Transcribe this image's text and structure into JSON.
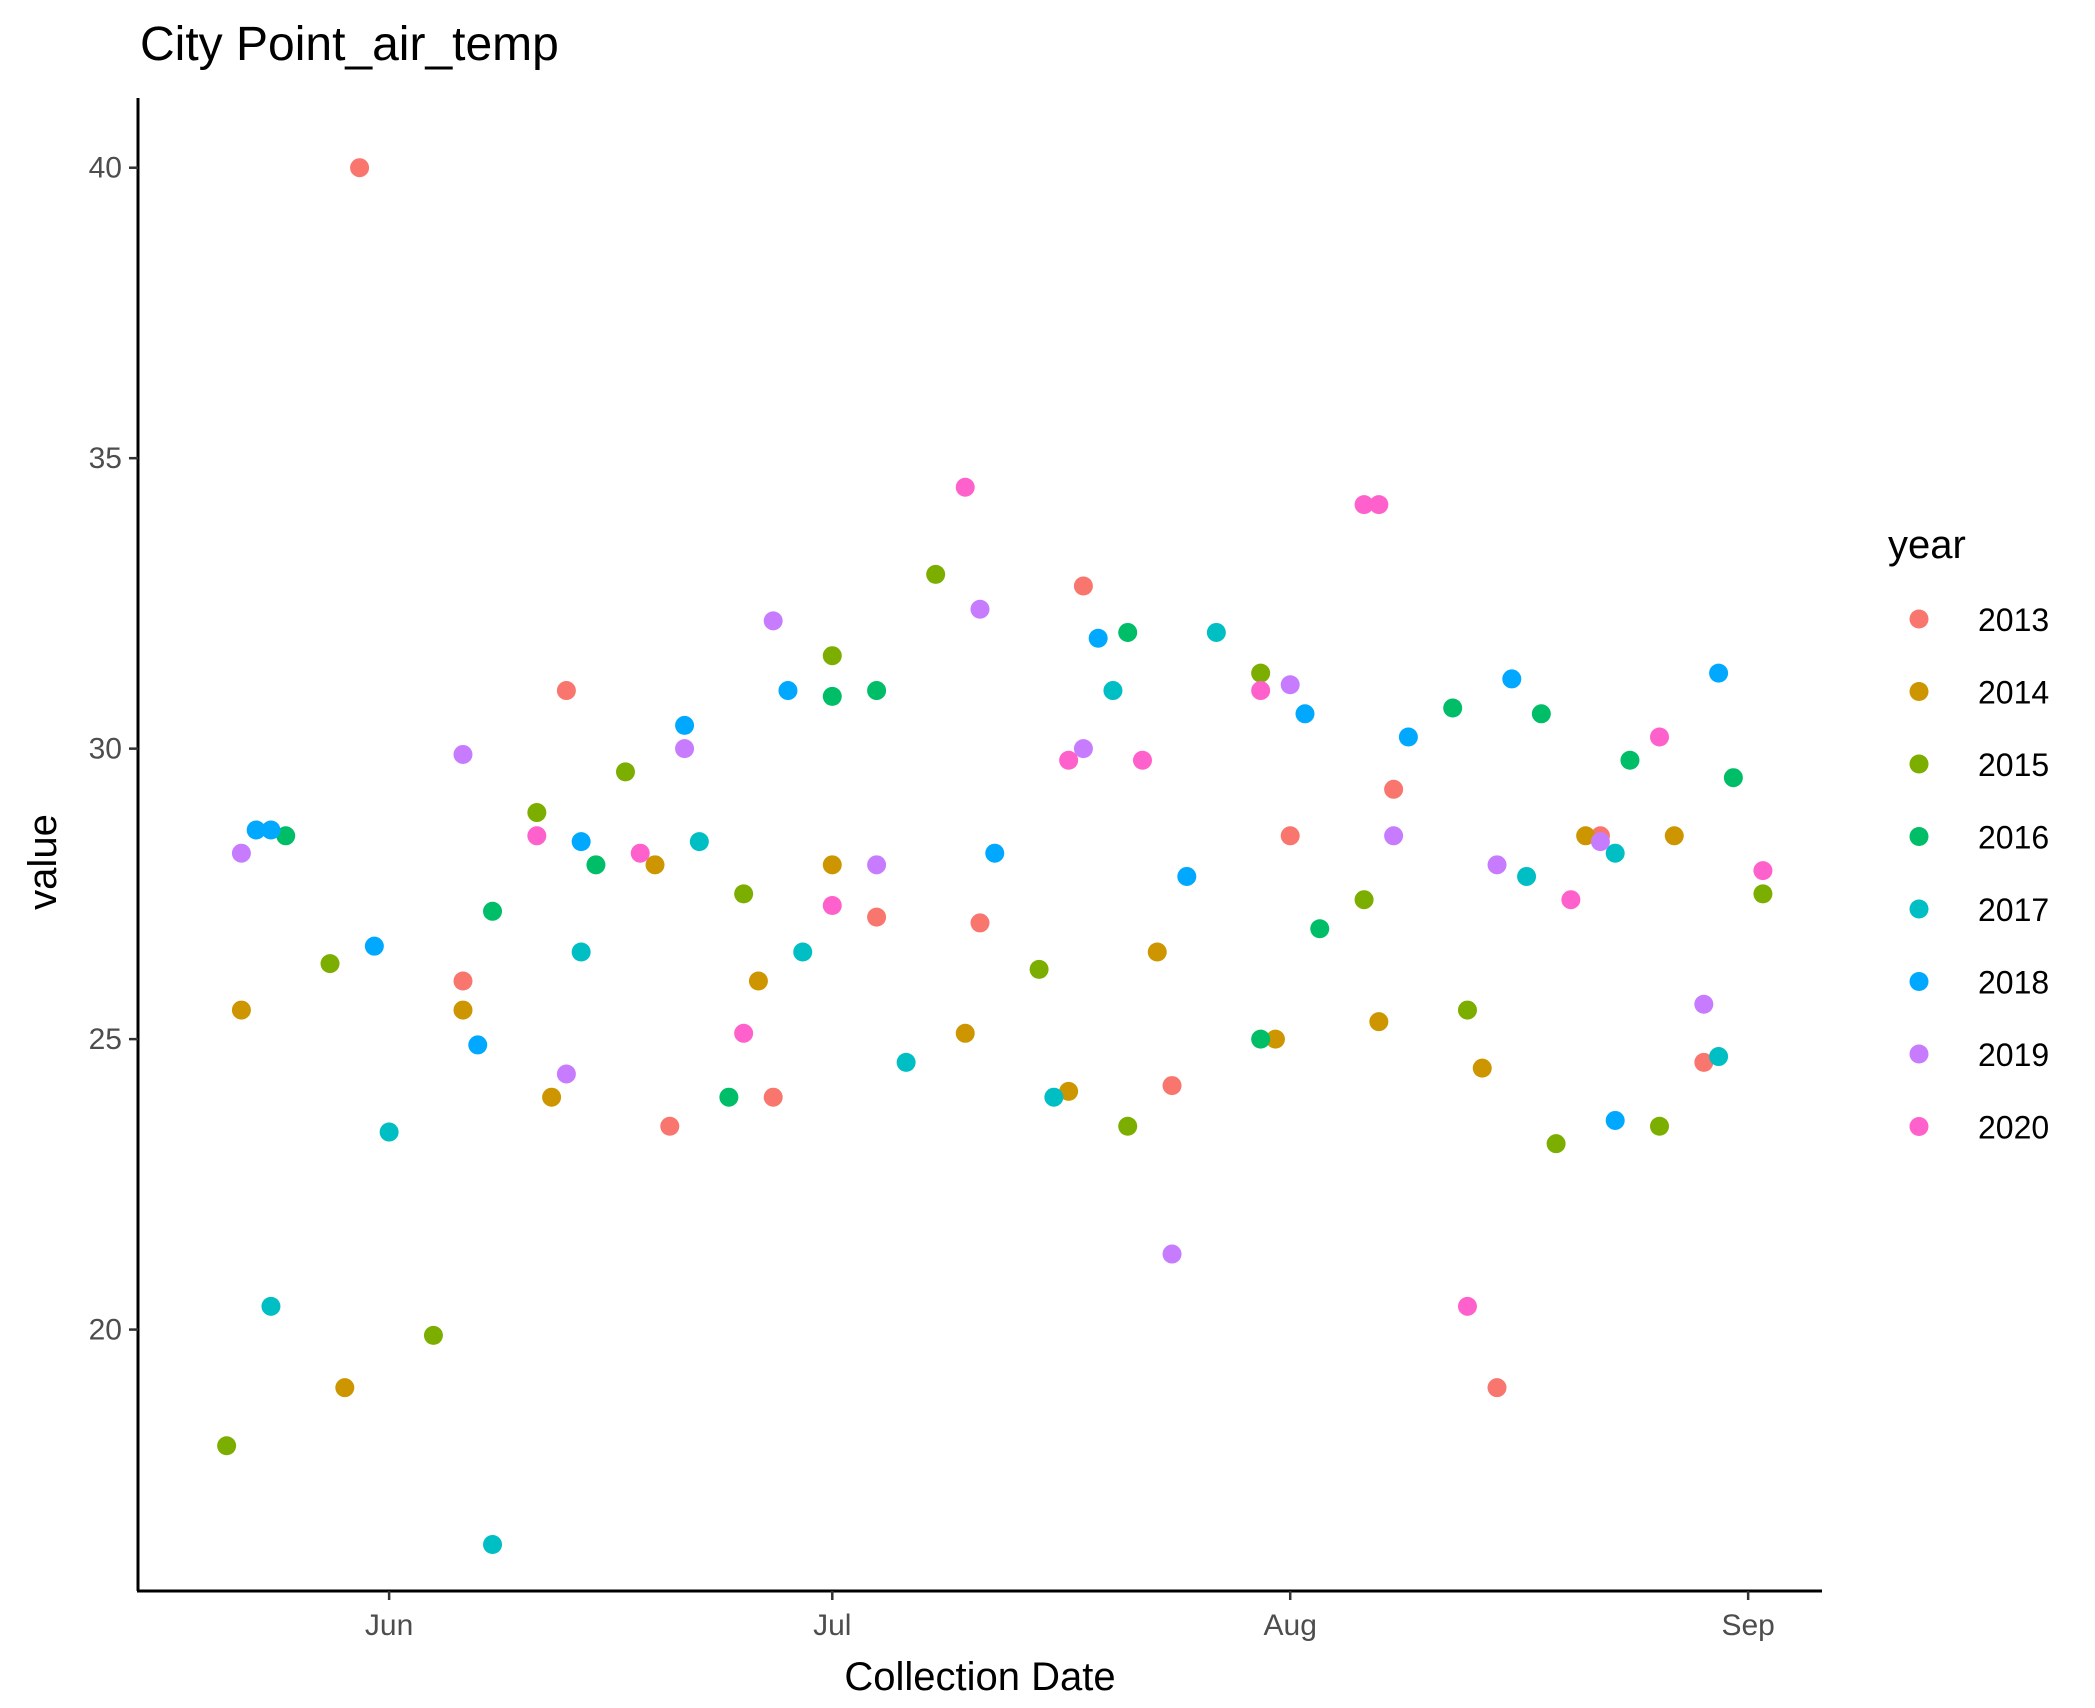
{
  "chart_data": {
    "type": "scatter",
    "title": "City Point_air_temp",
    "xlabel": "Collection Date",
    "ylabel": "value",
    "x_axis_type": "date",
    "xlim": [
      "2013-05-15",
      "2013-09-06"
    ],
    "ylim": [
      15.5,
      41.2
    ],
    "x_ticks": [
      {
        "date": "2013-06-01",
        "label": "Jun"
      },
      {
        "date": "2013-07-01",
        "label": "Jul"
      },
      {
        "date": "2013-08-01",
        "label": "Aug"
      },
      {
        "date": "2013-09-01",
        "label": "Sep"
      }
    ],
    "y_ticks": [
      20,
      25,
      30,
      35,
      40
    ],
    "grid": false,
    "legend": {
      "title": "year",
      "position": "right"
    },
    "series": [
      {
        "name": "2013",
        "color": "#F8766D",
        "points": [
          {
            "x": "2013-05-30",
            "y": 40.0
          },
          {
            "x": "2013-06-06",
            "y": 26.0
          },
          {
            "x": "2013-06-13",
            "y": 31.0
          },
          {
            "x": "2013-06-20",
            "y": 23.5
          },
          {
            "x": "2013-06-27",
            "y": 24.0
          },
          {
            "x": "2013-07-04",
            "y": 27.1
          },
          {
            "x": "2013-07-11",
            "y": 27.0
          },
          {
            "x": "2013-07-18",
            "y": 32.8
          },
          {
            "x": "2013-07-24",
            "y": 24.2
          },
          {
            "x": "2013-08-01",
            "y": 28.5
          },
          {
            "x": "2013-08-08",
            "y": 29.3
          },
          {
            "x": "2013-08-15",
            "y": 19.0
          },
          {
            "x": "2013-08-22",
            "y": 28.5
          },
          {
            "x": "2013-08-29",
            "y": 24.6
          }
        ]
      },
      {
        "name": "2014",
        "color": "#CD9600",
        "points": [
          {
            "x": "2013-05-22",
            "y": 25.5
          },
          {
            "x": "2013-05-29",
            "y": 19.0
          },
          {
            "x": "2013-06-06",
            "y": 25.5
          },
          {
            "x": "2013-06-12",
            "y": 24.0
          },
          {
            "x": "2013-06-19",
            "y": 28.0
          },
          {
            "x": "2013-06-26",
            "y": 26.0
          },
          {
            "x": "2013-07-01",
            "y": 28.0
          },
          {
            "x": "2013-07-10",
            "y": 25.1
          },
          {
            "x": "2013-07-17",
            "y": 24.1
          },
          {
            "x": "2013-07-23",
            "y": 26.5
          },
          {
            "x": "2013-07-31",
            "y": 25.0
          },
          {
            "x": "2013-08-07",
            "y": 25.3
          },
          {
            "x": "2013-08-14",
            "y": 24.5
          },
          {
            "x": "2013-08-21",
            "y": 28.5
          },
          {
            "x": "2013-08-27",
            "y": 28.5
          }
        ]
      },
      {
        "name": "2015",
        "color": "#7CAE00",
        "points": [
          {
            "x": "2013-05-21",
            "y": 18.0
          },
          {
            "x": "2013-05-28",
            "y": 26.3
          },
          {
            "x": "2013-06-04",
            "y": 19.9
          },
          {
            "x": "2013-06-11",
            "y": 28.9
          },
          {
            "x": "2013-06-17",
            "y": 29.6
          },
          {
            "x": "2013-06-25",
            "y": 27.5
          },
          {
            "x": "2013-07-01",
            "y": 31.6
          },
          {
            "x": "2013-07-08",
            "y": 33.0
          },
          {
            "x": "2013-07-15",
            "y": 26.2
          },
          {
            "x": "2013-07-21",
            "y": 23.5
          },
          {
            "x": "2013-07-30",
            "y": 31.3
          },
          {
            "x": "2013-08-06",
            "y": 27.4
          },
          {
            "x": "2013-08-13",
            "y": 25.5
          },
          {
            "x": "2013-08-19",
            "y": 23.2
          },
          {
            "x": "2013-08-26",
            "y": 23.5
          },
          {
            "x": "2013-09-02",
            "y": 27.5
          }
        ]
      },
      {
        "name": "2016",
        "color": "#00BE67",
        "points": [
          {
            "x": "2013-05-25",
            "y": 28.5
          },
          {
            "x": "2013-06-08",
            "y": 27.2
          },
          {
            "x": "2013-06-15",
            "y": 28.0
          },
          {
            "x": "2013-06-24",
            "y": 24.0
          },
          {
            "x": "2013-07-01",
            "y": 30.9
          },
          {
            "x": "2013-07-04",
            "y": 31.0
          },
          {
            "x": "2013-07-21",
            "y": 32.0
          },
          {
            "x": "2013-07-30",
            "y": 25.0
          },
          {
            "x": "2013-08-03",
            "y": 26.9
          },
          {
            "x": "2013-08-12",
            "y": 30.7
          },
          {
            "x": "2013-08-18",
            "y": 30.6
          },
          {
            "x": "2013-08-24",
            "y": 29.8
          },
          {
            "x": "2013-08-31",
            "y": 29.5
          }
        ]
      },
      {
        "name": "2017",
        "color": "#00BFC4",
        "points": [
          {
            "x": "2013-05-24",
            "y": 20.4
          },
          {
            "x": "2013-06-01",
            "y": 23.4
          },
          {
            "x": "2013-06-08",
            "y": 16.3
          },
          {
            "x": "2013-06-14",
            "y": 26.5
          },
          {
            "x": "2013-06-22",
            "y": 28.4
          },
          {
            "x": "2013-06-29",
            "y": 26.5
          },
          {
            "x": "2013-07-06",
            "y": 24.6
          },
          {
            "x": "2013-07-16",
            "y": 24.0
          },
          {
            "x": "2013-07-20",
            "y": 31.0
          },
          {
            "x": "2013-07-27",
            "y": 32.0
          },
          {
            "x": "2013-08-17",
            "y": 27.8
          },
          {
            "x": "2013-08-23",
            "y": 28.2
          },
          {
            "x": "2013-08-30",
            "y": 24.7
          }
        ]
      },
      {
        "name": "2018",
        "color": "#00A9FF",
        "points": [
          {
            "x": "2013-05-23",
            "y": 28.6
          },
          {
            "x": "2013-05-24",
            "y": 28.6
          },
          {
            "x": "2013-05-31",
            "y": 26.6
          },
          {
            "x": "2013-06-07",
            "y": 24.9
          },
          {
            "x": "2013-06-14",
            "y": 28.4
          },
          {
            "x": "2013-06-21",
            "y": 30.4
          },
          {
            "x": "2013-06-28",
            "y": 31.0
          },
          {
            "x": "2013-07-12",
            "y": 28.2
          },
          {
            "x": "2013-07-19",
            "y": 31.9
          },
          {
            "x": "2013-07-25",
            "y": 27.8
          },
          {
            "x": "2013-08-02",
            "y": 30.6
          },
          {
            "x": "2013-08-09",
            "y": 30.2
          },
          {
            "x": "2013-08-16",
            "y": 31.2
          },
          {
            "x": "2013-08-23",
            "y": 23.6
          },
          {
            "x": "2013-08-30",
            "y": 31.3
          }
        ]
      },
      {
        "name": "2019",
        "color": "#C77CFF",
        "points": [
          {
            "x": "2013-05-22",
            "y": 28.2
          },
          {
            "x": "2013-06-06",
            "y": 29.9
          },
          {
            "x": "2013-06-13",
            "y": 24.4
          },
          {
            "x": "2013-06-21",
            "y": 30.0
          },
          {
            "x": "2013-06-27",
            "y": 32.2
          },
          {
            "x": "2013-07-04",
            "y": 28.0
          },
          {
            "x": "2013-07-11",
            "y": 32.4
          },
          {
            "x": "2013-07-18",
            "y": 30.0
          },
          {
            "x": "2013-07-24",
            "y": 21.3
          },
          {
            "x": "2013-08-01",
            "y": 31.1
          },
          {
            "x": "2013-08-08",
            "y": 28.5
          },
          {
            "x": "2013-08-15",
            "y": 28.0
          },
          {
            "x": "2013-08-22",
            "y": 28.4
          },
          {
            "x": "2013-08-29",
            "y": 25.6
          }
        ]
      },
      {
        "name": "2020",
        "color": "#FF61CC",
        "points": [
          {
            "x": "2013-06-11",
            "y": 28.5
          },
          {
            "x": "2013-06-18",
            "y": 28.2
          },
          {
            "x": "2013-06-25",
            "y": 25.1
          },
          {
            "x": "2013-07-01",
            "y": 27.3
          },
          {
            "x": "2013-07-10",
            "y": 34.5
          },
          {
            "x": "2013-07-17",
            "y": 29.8
          },
          {
            "x": "2013-07-22",
            "y": 29.8
          },
          {
            "x": "2013-07-30",
            "y": 31.0
          },
          {
            "x": "2013-08-06",
            "y": 34.2
          },
          {
            "x": "2013-08-07",
            "y": 34.2
          },
          {
            "x": "2013-08-13",
            "y": 20.4
          },
          {
            "x": "2013-08-20",
            "y": 27.4
          },
          {
            "x": "2013-08-26",
            "y": 30.2
          },
          {
            "x": "2013-09-02",
            "y": 27.9
          }
        ]
      }
    ]
  }
}
